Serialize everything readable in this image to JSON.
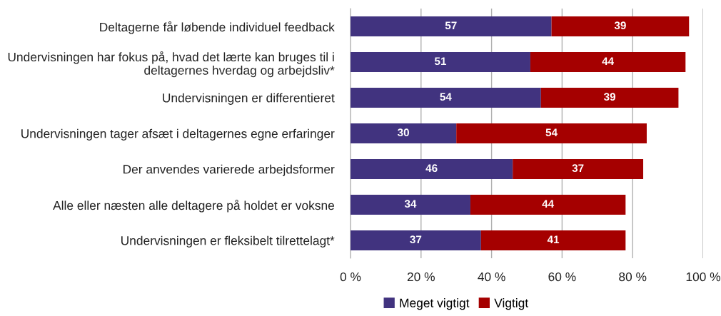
{
  "chart_data": {
    "type": "bar",
    "orientation": "horizontal",
    "stacked": true,
    "categories": [
      "Deltagerne får løbende individuel feedback",
      "Undervisningen har fokus på, hvad det lærte kan bruges til i\ndeltagernes hverdag og arbejdsliv*",
      "Undervisningen er differentieret",
      "Undervisningen tager afsæt i deltagernes egne erfaringer",
      "Der anvendes varierede arbejdsformer",
      "Alle eller næsten alle deltagere på holdet er voksne",
      "Undervisningen er fleksibelt tilrettelagt*"
    ],
    "series": [
      {
        "name": "Meget vigtigt",
        "color": "#41337f",
        "values": [
          57,
          51,
          54,
          30,
          46,
          34,
          37
        ]
      },
      {
        "name": "Vigtigt",
        "color": "#a50000",
        "values": [
          39,
          44,
          39,
          54,
          37,
          44,
          41
        ]
      }
    ],
    "xlim": [
      0,
      100
    ],
    "xticks": [
      {
        "value": 0,
        "label": "0 %"
      },
      {
        "value": 20,
        "label": "20 %"
      },
      {
        "value": 40,
        "label": "40 %"
      },
      {
        "value": 60,
        "label": "60 %"
      },
      {
        "value": 80,
        "label": "80 %"
      },
      {
        "value": 100,
        "label": "100 %"
      }
    ],
    "grid": "x",
    "legend": "bottom",
    "data_labels": true
  }
}
